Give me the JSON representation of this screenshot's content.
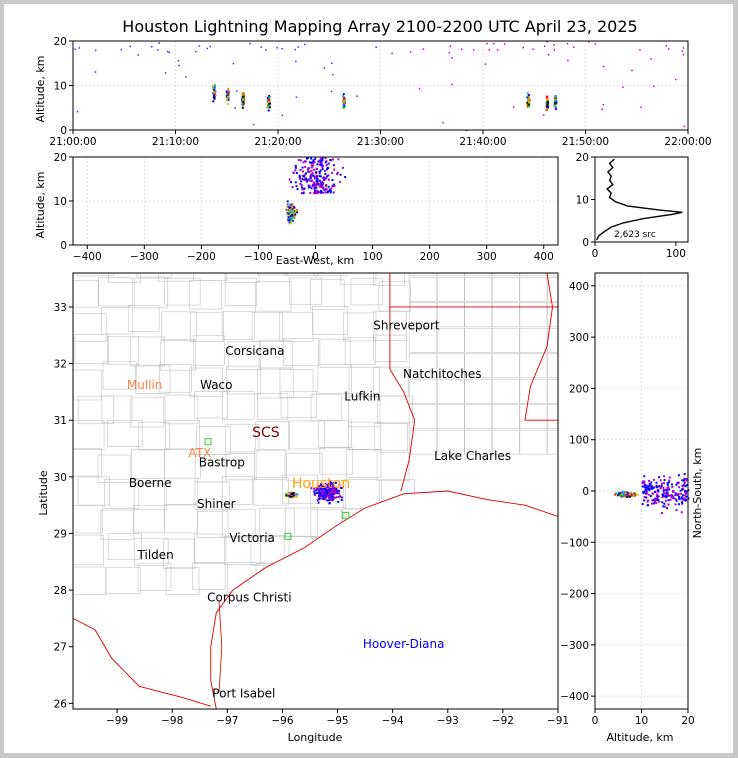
{
  "chart_data": [
    {
      "id": "time_altitude",
      "type": "scatter",
      "title": "Houston Lightning Mapping Array 2100-2200 UTC April 23, 2025",
      "ylabel": "Altitude, km",
      "xlim": [
        "21:00:00",
        "22:00:00"
      ],
      "ylim": [
        0,
        20
      ],
      "x_ticks": [
        "21:00:00",
        "21:10:00",
        "21:20:00",
        "21:30:00",
        "21:40:00",
        "21:50:00",
        "22:00:00"
      ],
      "y_ticks": [
        "0",
        "10",
        "20"
      ],
      "grid": true,
      "clusters": [
        {
          "x": "21:13:40",
          "y": 8.5
        },
        {
          "x": "21:15:00",
          "y": 8.0
        },
        {
          "x": "21:16:30",
          "y": 7.0
        },
        {
          "x": "21:19:00",
          "y": 6.5
        },
        {
          "x": "21:26:20",
          "y": 6.5
        },
        {
          "x": "21:44:20",
          "y": 6.5
        },
        {
          "x": "21:46:10",
          "y": 6.0
        },
        {
          "x": "21:47:00",
          "y": 6.5
        }
      ]
    },
    {
      "id": "ew_altitude",
      "type": "scatter",
      "xlabel": "East-West, km",
      "ylabel": "Altitude, km",
      "xlim": [
        -425,
        425
      ],
      "ylim": [
        0,
        20
      ],
      "x_ticks": [
        "−400",
        "−300",
        "−200",
        "−100",
        "0",
        "100",
        "200",
        "300",
        "400"
      ],
      "y_ticks": [
        "0",
        "10",
        "20"
      ],
      "grid": true,
      "clusters": [
        {
          "x": -45,
          "y": 7.5
        },
        {
          "x": 0,
          "y": 14
        }
      ]
    },
    {
      "id": "altitude_histogram",
      "type": "line",
      "xlim": [
        0,
        115
      ],
      "ylim": [
        0,
        20
      ],
      "x_ticks": [
        "0",
        "100"
      ],
      "y_ticks": [
        "0",
        "10",
        "20"
      ],
      "annotation": "2,623 src",
      "profile": [
        {
          "count": 2,
          "alt": 0.5
        },
        {
          "count": 5,
          "alt": 1.5
        },
        {
          "count": 12,
          "alt": 2.5
        },
        {
          "count": 20,
          "alt": 3.5
        },
        {
          "count": 35,
          "alt": 4.5
        },
        {
          "count": 60,
          "alt": 5.5
        },
        {
          "count": 95,
          "alt": 6.5
        },
        {
          "count": 108,
          "alt": 7.0
        },
        {
          "count": 80,
          "alt": 7.5
        },
        {
          "count": 40,
          "alt": 8.5
        },
        {
          "count": 25,
          "alt": 9.5
        },
        {
          "count": 18,
          "alt": 10.5
        },
        {
          "count": 20,
          "alt": 11.5
        },
        {
          "count": 15,
          "alt": 12.5
        },
        {
          "count": 22,
          "alt": 13.5
        },
        {
          "count": 18,
          "alt": 14.5
        },
        {
          "count": 20,
          "alt": 15.5
        },
        {
          "count": 16,
          "alt": 16.5
        },
        {
          "count": 22,
          "alt": 17.5
        },
        {
          "count": 18,
          "alt": 18.5
        },
        {
          "count": 24,
          "alt": 19.5
        }
      ]
    },
    {
      "id": "plan_view",
      "type": "scatter",
      "xlabel": "Longitude",
      "ylabel": "Latitude",
      "xlim": [
        -99.8,
        -91.0
      ],
      "ylim": [
        25.9,
        33.6
      ],
      "x_ticks": [
        "−99",
        "−98",
        "−97",
        "−96",
        "−95",
        "−94",
        "−93",
        "−92",
        "−91"
      ],
      "y_ticks": [
        "26",
        "27",
        "28",
        "29",
        "30",
        "31",
        "32",
        "33"
      ],
      "cities": [
        {
          "name": "Shreveport",
          "lon": -93.75,
          "lat": 32.6,
          "color": "#000000"
        },
        {
          "name": "Corsicana",
          "lon": -96.5,
          "lat": 32.15,
          "color": "#000000"
        },
        {
          "name": "Natchitoches",
          "lon": -93.1,
          "lat": 31.75,
          "color": "#000000"
        },
        {
          "name": "Mullin",
          "lon": -98.5,
          "lat": 31.55,
          "color": "#ff8040"
        },
        {
          "name": "Waco",
          "lon": -97.2,
          "lat": 31.55,
          "color": "#000000"
        },
        {
          "name": "Lufkin",
          "lon": -94.55,
          "lat": 31.35,
          "color": "#000000"
        },
        {
          "name": "SCS",
          "lon": -96.3,
          "lat": 30.7,
          "color": "#800000"
        },
        {
          "name": "ATX",
          "lon": -97.5,
          "lat": 30.35,
          "color": "#ff8040"
        },
        {
          "name": "Bastrop",
          "lon": -97.1,
          "lat": 30.18,
          "color": "#000000"
        },
        {
          "name": "Lake Charles",
          "lon": -92.55,
          "lat": 30.3,
          "color": "#000000"
        },
        {
          "name": "Houston",
          "lon": -95.3,
          "lat": 29.8,
          "color": "#ffa500"
        },
        {
          "name": "Boerne",
          "lon": -98.4,
          "lat": 29.82,
          "color": "#000000"
        },
        {
          "name": "Shiner",
          "lon": -97.2,
          "lat": 29.45,
          "color": "#000000"
        },
        {
          "name": "Victoria",
          "lon": -96.55,
          "lat": 28.85,
          "color": "#000000"
        },
        {
          "name": "Tilden",
          "lon": -98.3,
          "lat": 28.55,
          "color": "#000000"
        },
        {
          "name": "Corpus Christi",
          "lon": -96.6,
          "lat": 27.8,
          "color": "#000000"
        },
        {
          "name": "Hoover-Diana",
          "lon": -93.8,
          "lat": 26.98,
          "color": "#0000ff"
        },
        {
          "name": "Port Isabel",
          "lon": -96.7,
          "lat": 26.1,
          "color": "#000000"
        }
      ],
      "stations": [
        {
          "lon": -97.35,
          "lat": 30.62
        },
        {
          "lon": -94.85,
          "lat": 29.32
        },
        {
          "lon": -95.9,
          "lat": 28.95
        }
      ],
      "clusters": [
        {
          "lon": -95.85,
          "lat": 29.7
        },
        {
          "lon": -95.2,
          "lat": 29.75
        }
      ]
    },
    {
      "id": "altitude_ns",
      "type": "scatter",
      "xlabel": "Altitude, km",
      "ylabel": "North-South, km",
      "xlim": [
        0,
        20
      ],
      "ylim": [
        -425,
        425
      ],
      "x_ticks": [
        "0",
        "10",
        "20"
      ],
      "y_ticks": [
        "−400",
        "−300",
        "−200",
        "−100",
        "0",
        "100",
        "200",
        "300",
        "400"
      ],
      "grid": true,
      "clusters": [
        {
          "x": 6.5,
          "y": -5
        },
        {
          "x": 14,
          "y": 0
        }
      ]
    }
  ],
  "colors": {
    "early": "#0000ff",
    "late": "#ff0000",
    "state_lines": "#dd0000",
    "county_lines": "#c0c0c0",
    "station": "#33cc33"
  }
}
